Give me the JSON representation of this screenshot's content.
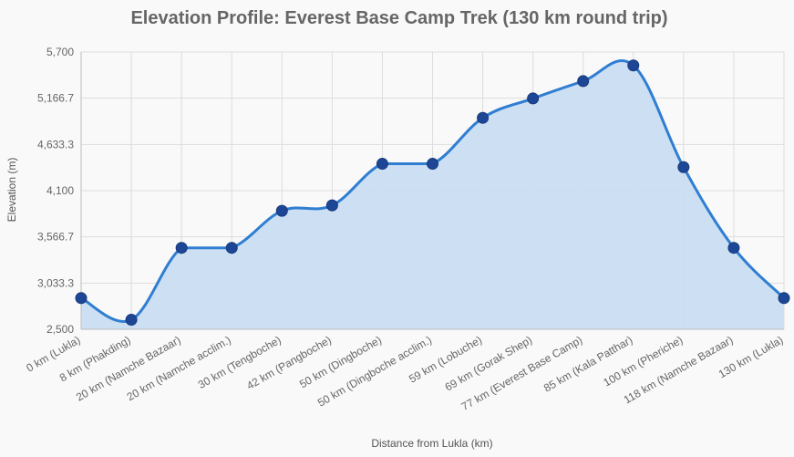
{
  "chart_data": {
    "type": "area",
    "title": "Elevation Profile: Everest Base Camp Trek (130 km round trip)",
    "xlabel": "Distance from Lukla (km)",
    "ylabel": "Elevation (m)",
    "categories": [
      "0 km (Lukla)",
      "8 km (Phakding)",
      "20 km (Namche Bazaar)",
      "20 km (Namche acclim.)",
      "30 km (Tengboche)",
      "42 km (Pangboche)",
      "50 km (Dingboche)",
      "50 km (Dingboche acclim.)",
      "59 km (Lobuche)",
      "69 km (Gorak Shep)",
      "77 km (Everest Base Camp)",
      "85 km (Kala Patthar)",
      "100 km (Pheriche)",
      "118 km (Namche Bazaar)",
      "130 km (Lukla)"
    ],
    "values": [
      2860,
      2610,
      3440,
      3440,
      3867,
      3930,
      4410,
      4410,
      4940,
      5164,
      5364,
      5545,
      4371,
      3440,
      2860
    ],
    "ylim": [
      2500,
      5700
    ],
    "yticks": [
      "2,500",
      "3,033.3",
      "3,566.7",
      "4,100",
      "4,633.3",
      "5,166.7",
      "5,700"
    ],
    "grid": true,
    "legend": "none",
    "colors": {
      "line": "#2f7ed1",
      "fill": "#c9ddf2",
      "marker": "#1d4796",
      "grid": "#dddddd"
    }
  }
}
